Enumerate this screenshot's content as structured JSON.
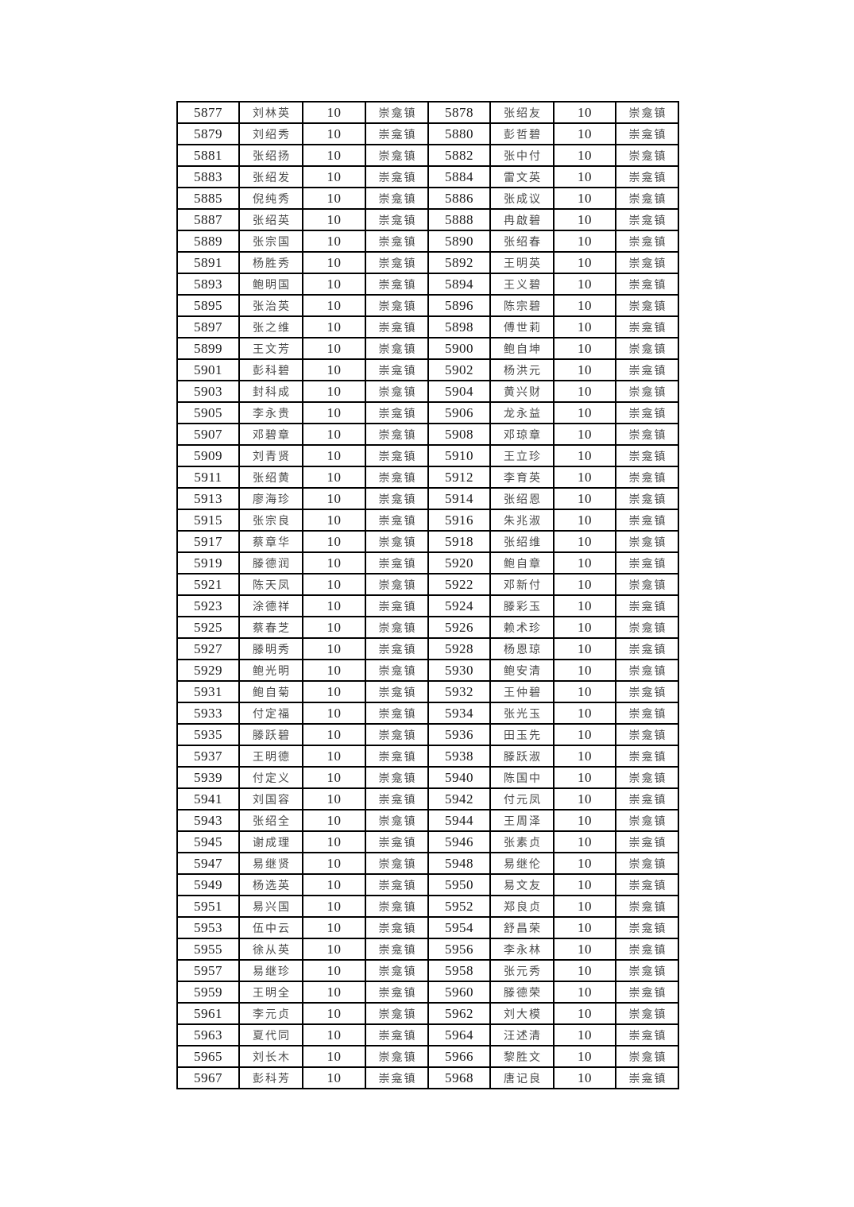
{
  "page": {
    "background_color": "#ffffff",
    "table_border_color": "#000000"
  },
  "table": {
    "description": "two-up beneficiary roster: serial number, name, amount, town (repeated twice per row)",
    "amount_value": "10",
    "town_value": "崇龛镇",
    "rows": [
      [
        "5877",
        "刘林英",
        "10",
        "崇龛镇",
        "5878",
        "张绍友",
        "10",
        "崇龛镇"
      ],
      [
        "5879",
        "刘绍秀",
        "10",
        "崇龛镇",
        "5880",
        "彭哲碧",
        "10",
        "崇龛镇"
      ],
      [
        "5881",
        "张绍扬",
        "10",
        "崇龛镇",
        "5882",
        "张中付",
        "10",
        "崇龛镇"
      ],
      [
        "5883",
        "张绍发",
        "10",
        "崇龛镇",
        "5884",
        "雷文英",
        "10",
        "崇龛镇"
      ],
      [
        "5885",
        "倪纯秀",
        "10",
        "崇龛镇",
        "5886",
        "张成议",
        "10",
        "崇龛镇"
      ],
      [
        "5887",
        "张绍英",
        "10",
        "崇龛镇",
        "5888",
        "冉啟碧",
        "10",
        "崇龛镇"
      ],
      [
        "5889",
        "张宗国",
        "10",
        "崇龛镇",
        "5890",
        "张绍春",
        "10",
        "崇龛镇"
      ],
      [
        "5891",
        "杨胜秀",
        "10",
        "崇龛镇",
        "5892",
        "王明英",
        "10",
        "崇龛镇"
      ],
      [
        "5893",
        "鲍明国",
        "10",
        "崇龛镇",
        "5894",
        "王义碧",
        "10",
        "崇龛镇"
      ],
      [
        "5895",
        "张治英",
        "10",
        "崇龛镇",
        "5896",
        "陈宗碧",
        "10",
        "崇龛镇"
      ],
      [
        "5897",
        "张之维",
        "10",
        "崇龛镇",
        "5898",
        "傅世莉",
        "10",
        "崇龛镇"
      ],
      [
        "5899",
        "王文芳",
        "10",
        "崇龛镇",
        "5900",
        "鲍自坤",
        "10",
        "崇龛镇"
      ],
      [
        "5901",
        "彭科碧",
        "10",
        "崇龛镇",
        "5902",
        "杨洪元",
        "10",
        "崇龛镇"
      ],
      [
        "5903",
        "封科成",
        "10",
        "崇龛镇",
        "5904",
        "黄兴财",
        "10",
        "崇龛镇"
      ],
      [
        "5905",
        "李永贵",
        "10",
        "崇龛镇",
        "5906",
        "龙永益",
        "10",
        "崇龛镇"
      ],
      [
        "5907",
        "邓碧章",
        "10",
        "崇龛镇",
        "5908",
        "邓琼章",
        "10",
        "崇龛镇"
      ],
      [
        "5909",
        "刘青贤",
        "10",
        "崇龛镇",
        "5910",
        "王立珍",
        "10",
        "崇龛镇"
      ],
      [
        "5911",
        "张绍黄",
        "10",
        "崇龛镇",
        "5912",
        "李育英",
        "10",
        "崇龛镇"
      ],
      [
        "5913",
        "廖海珍",
        "10",
        "崇龛镇",
        "5914",
        "张绍恩",
        "10",
        "崇龛镇"
      ],
      [
        "5915",
        "张宗良",
        "10",
        "崇龛镇",
        "5916",
        "朱兆淑",
        "10",
        "崇龛镇"
      ],
      [
        "5917",
        "蔡章华",
        "10",
        "崇龛镇",
        "5918",
        "张绍维",
        "10",
        "崇龛镇"
      ],
      [
        "5919",
        "滕德润",
        "10",
        "崇龛镇",
        "5920",
        "鲍自章",
        "10",
        "崇龛镇"
      ],
      [
        "5921",
        "陈天凤",
        "10",
        "崇龛镇",
        "5922",
        "邓新付",
        "10",
        "崇龛镇"
      ],
      [
        "5923",
        "涂德祥",
        "10",
        "崇龛镇",
        "5924",
        "滕彩玉",
        "10",
        "崇龛镇"
      ],
      [
        "5925",
        "蔡春芝",
        "10",
        "崇龛镇",
        "5926",
        "赖术珍",
        "10",
        "崇龛镇"
      ],
      [
        "5927",
        "滕明秀",
        "10",
        "崇龛镇",
        "5928",
        "杨恩琼",
        "10",
        "崇龛镇"
      ],
      [
        "5929",
        "鲍光明",
        "10",
        "崇龛镇",
        "5930",
        "鲍安清",
        "10",
        "崇龛镇"
      ],
      [
        "5931",
        "鲍自菊",
        "10",
        "崇龛镇",
        "5932",
        "王仲碧",
        "10",
        "崇龛镇"
      ],
      [
        "5933",
        "付定福",
        "10",
        "崇龛镇",
        "5934",
        "张光玉",
        "10",
        "崇龛镇"
      ],
      [
        "5935",
        "滕跃碧",
        "10",
        "崇龛镇",
        "5936",
        "田玉先",
        "10",
        "崇龛镇"
      ],
      [
        "5937",
        "王明德",
        "10",
        "崇龛镇",
        "5938",
        "滕跃淑",
        "10",
        "崇龛镇"
      ],
      [
        "5939",
        "付定义",
        "10",
        "崇龛镇",
        "5940",
        "陈国中",
        "10",
        "崇龛镇"
      ],
      [
        "5941",
        "刘国容",
        "10",
        "崇龛镇",
        "5942",
        "付元凤",
        "10",
        "崇龛镇"
      ],
      [
        "5943",
        "张绍全",
        "10",
        "崇龛镇",
        "5944",
        "王周泽",
        "10",
        "崇龛镇"
      ],
      [
        "5945",
        "谢成理",
        "10",
        "崇龛镇",
        "5946",
        "张素贞",
        "10",
        "崇龛镇"
      ],
      [
        "5947",
        "易继贤",
        "10",
        "崇龛镇",
        "5948",
        "易继伦",
        "10",
        "崇龛镇"
      ],
      [
        "5949",
        "杨选英",
        "10",
        "崇龛镇",
        "5950",
        "易文友",
        "10",
        "崇龛镇"
      ],
      [
        "5951",
        "易兴国",
        "10",
        "崇龛镇",
        "5952",
        "郑良贞",
        "10",
        "崇龛镇"
      ],
      [
        "5953",
        "伍中云",
        "10",
        "崇龛镇",
        "5954",
        "舒昌荣",
        "10",
        "崇龛镇"
      ],
      [
        "5955",
        "徐从英",
        "10",
        "崇龛镇",
        "5956",
        "李永林",
        "10",
        "崇龛镇"
      ],
      [
        "5957",
        "易继珍",
        "10",
        "崇龛镇",
        "5958",
        "张元秀",
        "10",
        "崇龛镇"
      ],
      [
        "5959",
        "王明全",
        "10",
        "崇龛镇",
        "5960",
        "滕德荣",
        "10",
        "崇龛镇"
      ],
      [
        "5961",
        "李元贞",
        "10",
        "崇龛镇",
        "5962",
        "刘大模",
        "10",
        "崇龛镇"
      ],
      [
        "5963",
        "夏代同",
        "10",
        "崇龛镇",
        "5964",
        "汪述清",
        "10",
        "崇龛镇"
      ],
      [
        "5965",
        "刘长木",
        "10",
        "崇龛镇",
        "5966",
        "黎胜文",
        "10",
        "崇龛镇"
      ],
      [
        "5967",
        "彭科芳",
        "10",
        "崇龛镇",
        "5968",
        "唐记良",
        "10",
        "崇龛镇"
      ]
    ]
  }
}
